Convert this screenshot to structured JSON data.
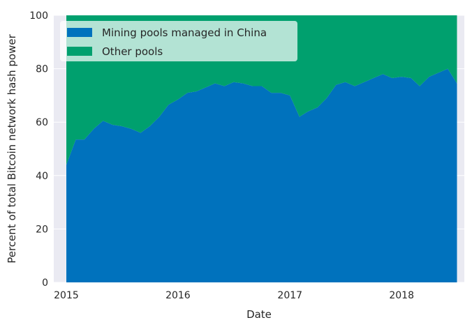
{
  "chart_data": {
    "type": "area",
    "stacked": true,
    "xlabel": "Date",
    "ylabel": "Percent of total Bitcoin network hash power",
    "xlim": [
      "2014-11-21",
      "2018-07-25"
    ],
    "ylim": [
      0,
      100
    ],
    "x_ticks": [
      "2015",
      "2016",
      "2017",
      "2018"
    ],
    "y_ticks": [
      "0",
      "20",
      "40",
      "60",
      "80",
      "100"
    ],
    "grid": true,
    "legend_position": "top-left",
    "colors": {
      "background": "#eaeaf2",
      "grid": "#ffffff",
      "china": "#0072bd",
      "other": "#00a06e",
      "legend_box": "#ffffff"
    },
    "x": [
      "2015-01-01",
      "2015-02-01",
      "2015-03-01",
      "2015-04-01",
      "2015-05-01",
      "2015-06-01",
      "2015-07-01",
      "2015-08-01",
      "2015-09-01",
      "2015-10-01",
      "2015-11-01",
      "2015-12-01",
      "2016-01-01",
      "2016-02-01",
      "2016-03-01",
      "2016-04-01",
      "2016-05-01",
      "2016-06-01",
      "2016-07-01",
      "2016-08-01",
      "2016-09-01",
      "2016-10-01",
      "2016-11-01",
      "2016-12-01",
      "2017-01-01",
      "2017-02-01",
      "2017-03-01",
      "2017-04-01",
      "2017-05-01",
      "2017-06-01",
      "2017-07-01",
      "2017-08-01",
      "2017-09-01",
      "2017-10-01",
      "2017-11-01",
      "2017-12-01",
      "2018-01-01",
      "2018-02-01",
      "2018-03-01",
      "2018-04-01",
      "2018-05-01",
      "2018-06-01",
      "2018-07-01"
    ],
    "series": [
      {
        "name": "Mining pools managed in China",
        "values": [
          44,
          53.5,
          53.5,
          57.5,
          60.5,
          59,
          58.5,
          57.5,
          56,
          58.5,
          62,
          66.5,
          68.5,
          71,
          71.5,
          73,
          74.5,
          73.5,
          75,
          74.5,
          73.5,
          73.5,
          71,
          71,
          70,
          62,
          64,
          65.5,
          69,
          74,
          75,
          73.5,
          75,
          76.5,
          78,
          76.5,
          77,
          76.5,
          73.5,
          77,
          78.5,
          80,
          74.5
        ]
      },
      {
        "name": "Other pools",
        "values": [
          56,
          46.5,
          46.5,
          42.5,
          39.5,
          41,
          41.5,
          42.5,
          44,
          41.5,
          38,
          33.5,
          31.5,
          29,
          28.5,
          27,
          25.5,
          26.5,
          25,
          25.5,
          26.5,
          26.5,
          29,
          29,
          30,
          38,
          36,
          34.5,
          31,
          26,
          25,
          26.5,
          25,
          23.5,
          22,
          23.5,
          23,
          23.5,
          26.5,
          23,
          21.5,
          20,
          25.5
        ]
      }
    ]
  }
}
